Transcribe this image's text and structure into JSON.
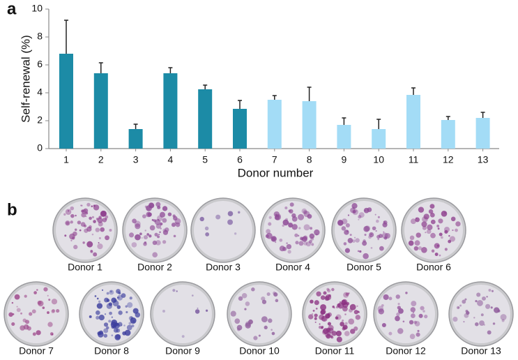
{
  "panel_labels": [
    "a",
    "b"
  ],
  "chart_data": {
    "type": "bar",
    "y_label": "Self-renewal (%)",
    "x_label": "Donor number",
    "categories": [
      "1",
      "2",
      "3",
      "4",
      "5",
      "6",
      "7",
      "8",
      "9",
      "10",
      "11",
      "12",
      "13"
    ],
    "values": [
      6.8,
      5.4,
      1.4,
      5.4,
      4.25,
      2.85,
      3.5,
      3.4,
      1.7,
      1.4,
      3.85,
      2.05,
      2.2
    ],
    "errors": [
      2.4,
      0.75,
      0.35,
      0.4,
      0.3,
      0.6,
      0.3,
      1.0,
      0.5,
      0.7,
      0.5,
      0.25,
      0.4
    ],
    "colors": [
      "#1c8ba6",
      "#1c8ba6",
      "#1c8ba6",
      "#1c8ba6",
      "#1c8ba6",
      "#1c8ba6",
      "#a3dcf6",
      "#a3dcf6",
      "#a3dcf6",
      "#a3dcf6",
      "#a3dcf6",
      "#a3dcf6",
      "#a3dcf6"
    ],
    "ylim": [
      0,
      10
    ],
    "yticks": [
      0,
      2,
      4,
      6,
      8,
      10
    ],
    "grid": false
  },
  "dishes": [
    "Donor 1",
    "Donor 2",
    "Donor 3",
    "Donor 4",
    "Donor 5",
    "Donor 6",
    "Donor 7",
    "Donor 8",
    "Donor 9",
    "Donor 10",
    "Donor 11",
    "Donor 12",
    "Donor 13"
  ]
}
